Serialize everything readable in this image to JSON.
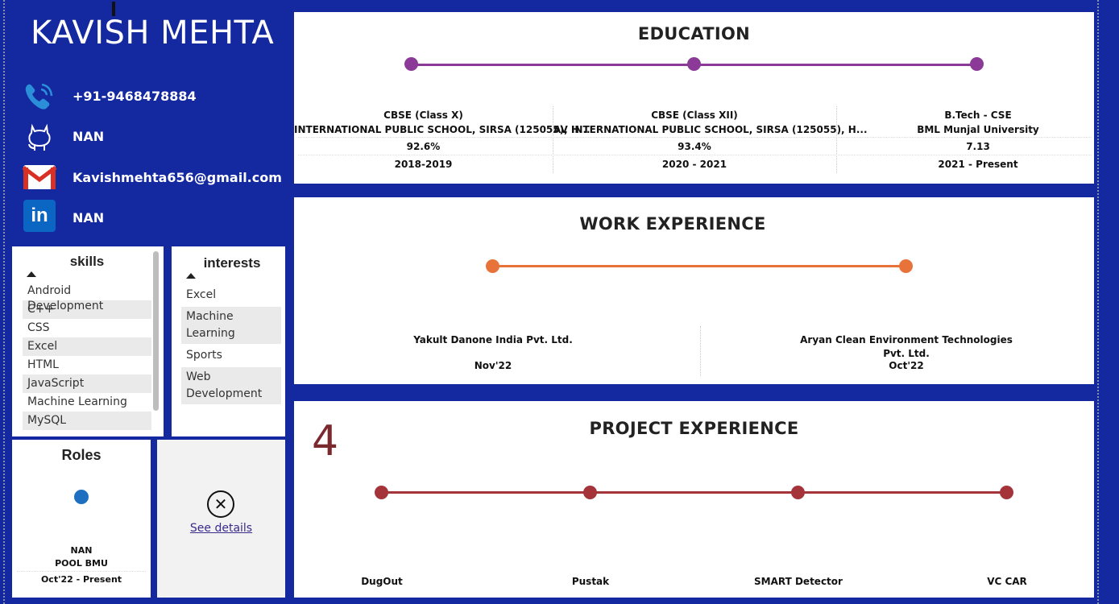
{
  "profile": {
    "name": "KAVISH MEHTA",
    "phone": "+91-9468478884",
    "github": "NAN",
    "email": "Kavishmehta656@gmail.com",
    "linkedin": "NAN"
  },
  "skills": {
    "title": "skills",
    "items": [
      "Android Development",
      "C++",
      "CSS",
      "Excel",
      "HTML",
      "JavaScript",
      "Machine Learning",
      "MySQL"
    ]
  },
  "interests": {
    "title": "interests",
    "items": [
      "Excel",
      "Machine Learning",
      "Sports",
      "Web Development"
    ]
  },
  "roles": {
    "title": "Roles",
    "role": "NAN",
    "org": "POOL BMU",
    "period": "Oct'22 - Present"
  },
  "details": {
    "link": "See details"
  },
  "education": {
    "title": "EDUCATION",
    "color": "#8b3a98",
    "entries": [
      {
        "level": "CBSE (Class X)",
        "school": "INTERNATIONAL PUBLIC SCHOOL, SIRSA (125055), H...",
        "score": "92.6%",
        "years": "2018-2019"
      },
      {
        "level": "CBSE (Class XII)",
        "school": "AV INTERNATIONAL PUBLIC SCHOOL, SIRSA (125055), H...",
        "score": "93.4%",
        "years": "2020 - 2021"
      },
      {
        "level": "B.Tech - CSE",
        "school": "BML Munjal University",
        "score": "7.13",
        "years": "2021 - Present"
      }
    ]
  },
  "work": {
    "title": "WORK EXPERIENCE",
    "color": "#e8733a",
    "entries": [
      {
        "company": "Yakult Danone India Pvt. Ltd.",
        "date": "Nov'22"
      },
      {
        "company_line1": "Aryan Clean Environment Technologies",
        "company_line2": "Pvt. Ltd.",
        "date": "Oct'22"
      }
    ]
  },
  "projects": {
    "title": "PROJECT EXPERIENCE",
    "count": "4",
    "color": "#a4343a",
    "count_color": "#7a2a2e",
    "items": [
      "DugOut",
      "Pustak",
      "SMART Detector",
      "VC CAR"
    ]
  }
}
